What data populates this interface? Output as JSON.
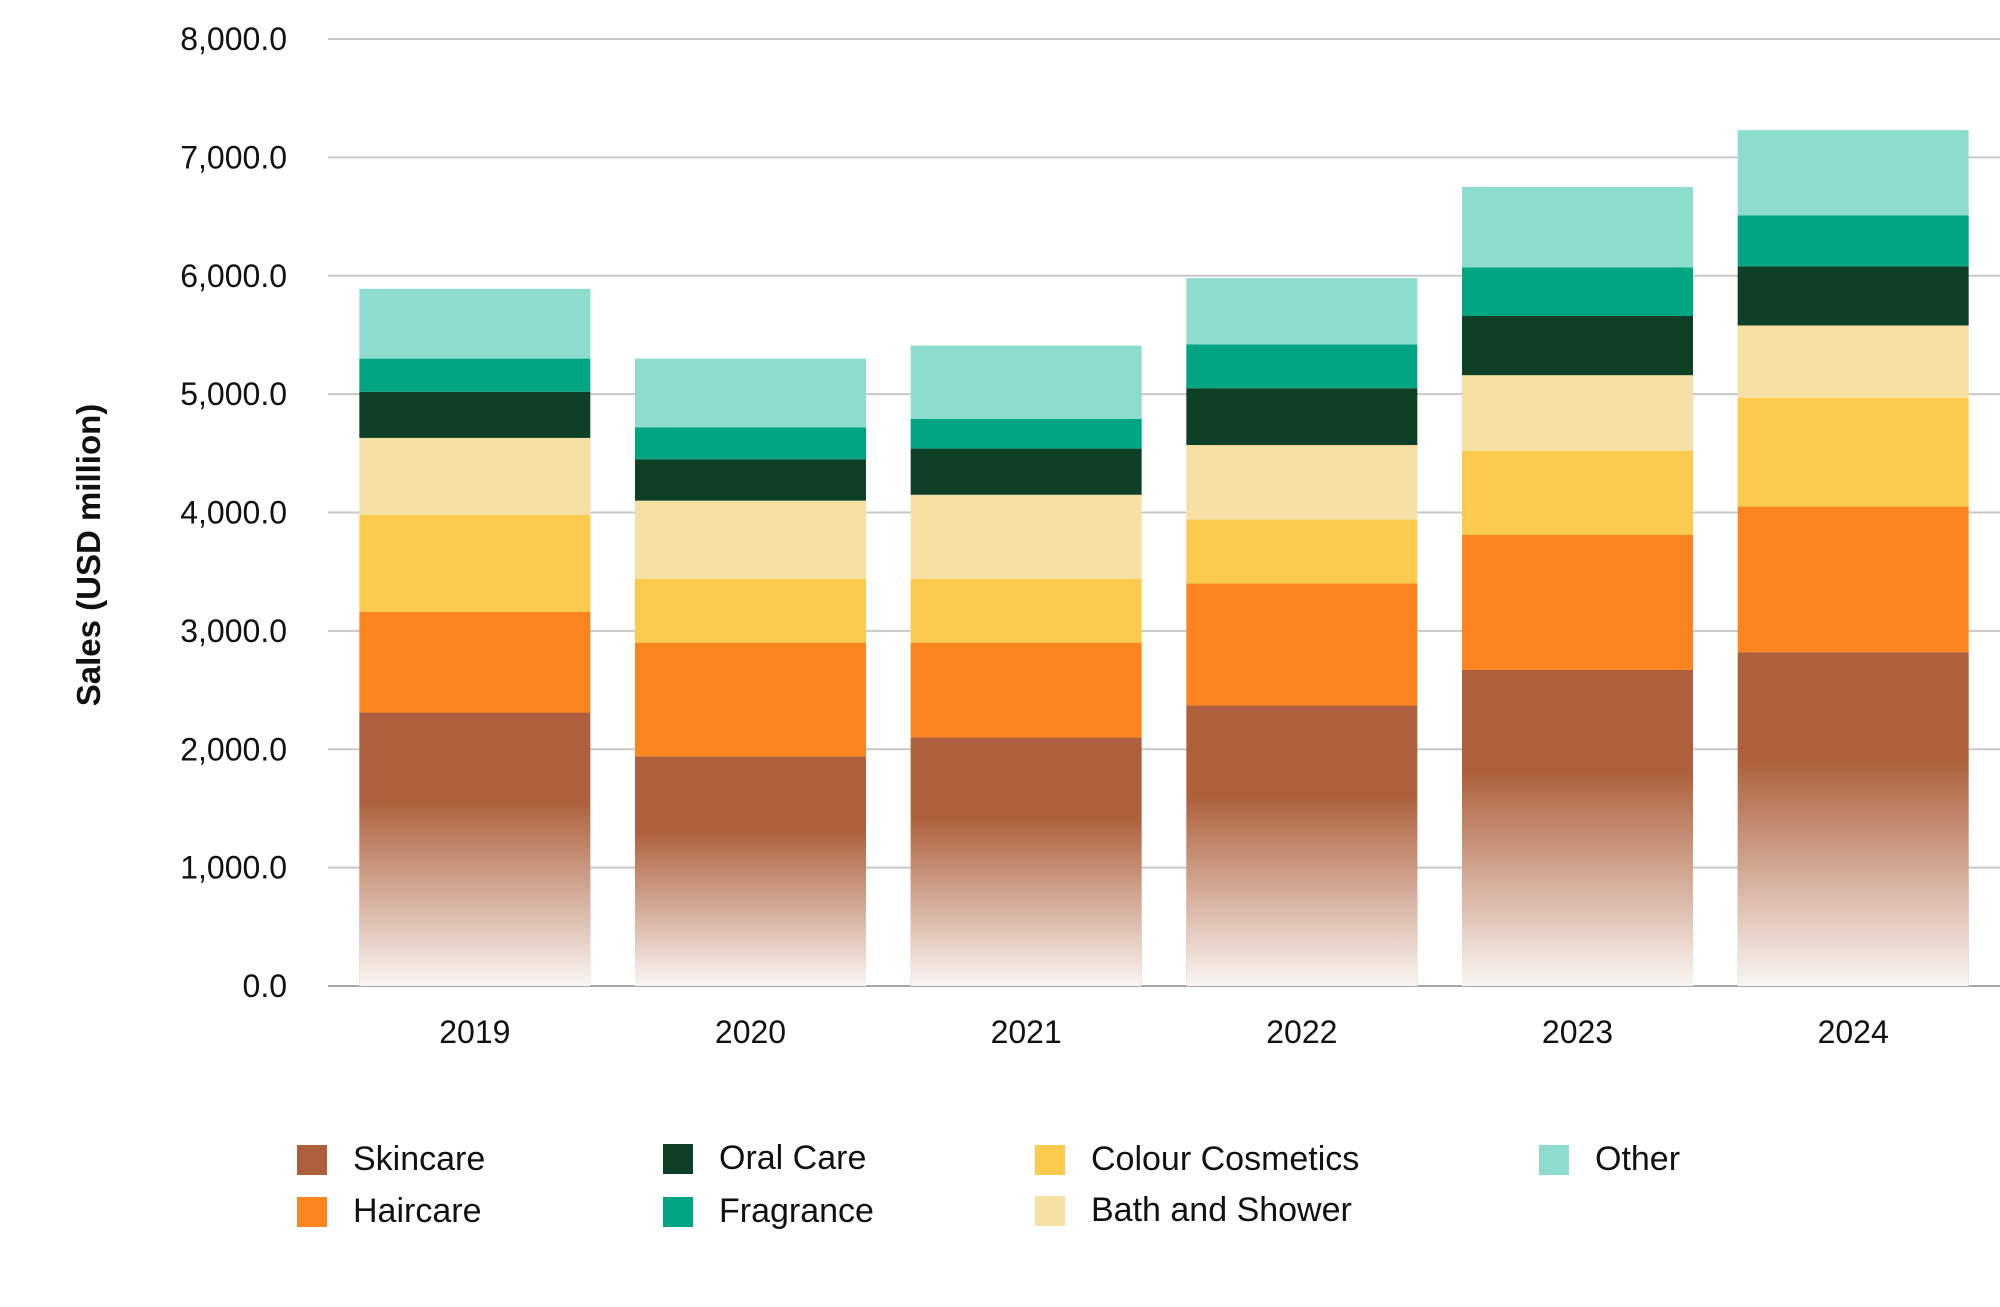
{
  "chart_data": {
    "type": "bar",
    "stacked": true,
    "categories": [
      "2019",
      "2020",
      "2021",
      "2022",
      "2023",
      "2024"
    ],
    "series": [
      {
        "name": "Skincare",
        "color": "#AD603B",
        "values": [
          2310,
          1940,
          2100,
          2370,
          2670,
          2820
        ]
      },
      {
        "name": "Haircare",
        "color": "#FD851F",
        "values": [
          850,
          960,
          800,
          1030,
          1140,
          1230
        ]
      },
      {
        "name": "Colour Cosmetics",
        "color": "#FCCA4D",
        "values": [
          820,
          540,
          540,
          540,
          710,
          920
        ]
      },
      {
        "name": "Bath and Shower",
        "color": "#F7E0A3",
        "values": [
          650,
          660,
          710,
          630,
          640,
          610
        ]
      },
      {
        "name": "Oral Care",
        "color": "#0E4028",
        "values": [
          390,
          350,
          390,
          480,
          500,
          500
        ]
      },
      {
        "name": "Fragrance",
        "color": "#00A582",
        "values": [
          280,
          270,
          250,
          370,
          410,
          430
        ]
      },
      {
        "name": "Other",
        "color": "#8CDDCD",
        "values": [
          590,
          580,
          620,
          560,
          680,
          720
        ]
      }
    ],
    "title": "",
    "xlabel": "",
    "ylabel": "Sales (USD million)",
    "ylim": [
      0,
      8000
    ],
    "yticks": [
      "0.0",
      "1,000.0",
      "2,000.0",
      "3,000.0",
      "4,000.0",
      "5,000.0",
      "6,000.0",
      "7,000.0",
      "8,000.0"
    ],
    "grid": true,
    "legend_position": "bottom",
    "legend_order": [
      "Skincare",
      "Haircare",
      "Oral Care",
      "Fragrance",
      "Colour Cosmetics",
      "Bath and Shower",
      "Other"
    ]
  }
}
